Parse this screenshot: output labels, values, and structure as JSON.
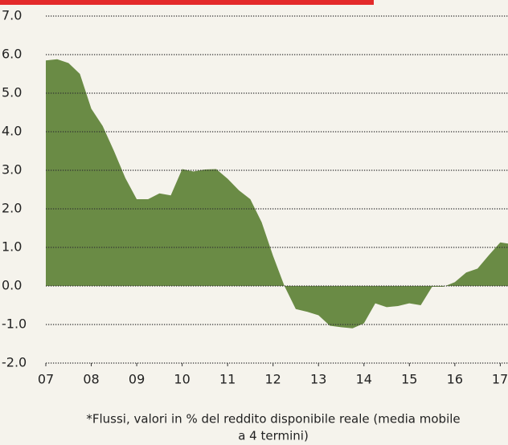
{
  "chart_data": {
    "type": "area",
    "x": [
      2007,
      2007.25,
      2007.5,
      2007.75,
      2008,
      2008.25,
      2008.5,
      2008.75,
      2009,
      2009.25,
      2009.5,
      2009.75,
      2010,
      2010.25,
      2010.5,
      2010.75,
      2011,
      2011.25,
      2011.5,
      2011.75,
      2012,
      2012.25,
      2012.5,
      2012.75,
      2013,
      2013.25,
      2013.5,
      2013.75,
      2014,
      2014.25,
      2014.5,
      2014.75,
      2015,
      2015.25,
      2015.5,
      2015.75,
      2016,
      2016.25,
      2016.5,
      2016.75,
      2017,
      2017.17
    ],
    "values": [
      5.85,
      5.88,
      5.78,
      5.5,
      4.6,
      4.15,
      3.5,
      2.8,
      2.25,
      2.25,
      2.4,
      2.35,
      3.03,
      2.97,
      3.02,
      3.03,
      2.78,
      2.48,
      2.25,
      1.65,
      0.78,
      0.0,
      -0.6,
      -0.67,
      -0.76,
      -1.03,
      -1.07,
      -1.1,
      -0.97,
      -0.45,
      -0.55,
      -0.52,
      -0.45,
      -0.5,
      -0.02,
      -0.02,
      0.1,
      0.35,
      0.45,
      0.8,
      1.13,
      1.1
    ],
    "color": "#6a8b45",
    "xlim": [
      2007,
      2017.17
    ],
    "xticks": [
      {
        "value": 2007,
        "label": "07"
      },
      {
        "value": 2008,
        "label": "08"
      },
      {
        "value": 2009,
        "label": "09"
      },
      {
        "value": 2010,
        "label": "10"
      },
      {
        "value": 2011,
        "label": "11"
      },
      {
        "value": 2012,
        "label": "12"
      },
      {
        "value": 2013,
        "label": "13"
      },
      {
        "value": 2014,
        "label": "14"
      },
      {
        "value": 2015,
        "label": "15"
      },
      {
        "value": 2016,
        "label": "16"
      },
      {
        "value": 2017,
        "label": "17"
      }
    ],
    "ylim": [
      -2,
      7
    ],
    "yticks": [
      {
        "value": 7,
        "label": "7.0"
      },
      {
        "value": 6,
        "label": "6.0"
      },
      {
        "value": 5,
        "label": "5.0"
      },
      {
        "value": 4,
        "label": "4.0"
      },
      {
        "value": 3,
        "label": "3.0"
      },
      {
        "value": 2,
        "label": "2.0"
      },
      {
        "value": 1,
        "label": "1.0"
      },
      {
        "value": 0,
        "label": "0.0"
      },
      {
        "value": -1,
        "label": "-1.0"
      },
      {
        "value": -2,
        "label": "-2.0"
      }
    ],
    "grid": true,
    "notes": [
      "*Flussi, valori in % del reddito disponibile reale (media mobile",
      "a 4 termini)"
    ]
  }
}
